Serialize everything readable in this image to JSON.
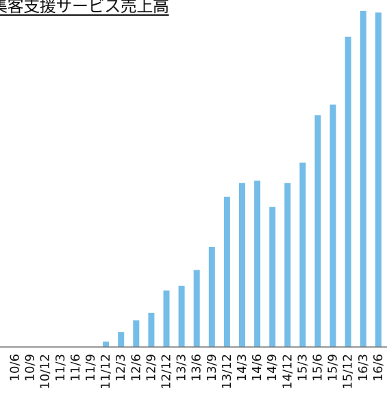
{
  "chart_data": {
    "type": "bar",
    "title": "集客支援サービス売上高",
    "categories": [
      "10/6",
      "10/9",
      "10/12",
      "11/3",
      "11/6",
      "11/9",
      "11/12",
      "12/3",
      "12/6",
      "12/9",
      "12/12",
      "13/3",
      "13/6",
      "13/9",
      "13/12",
      "14/3",
      "14/6",
      "14/9",
      "14/12",
      "15/3",
      "15/6",
      "15/9",
      "15/12",
      "16/3",
      "16/6"
    ],
    "values": [
      0,
      0,
      0,
      0,
      0,
      0,
      1.6,
      4.5,
      8.0,
      10.3,
      17.0,
      18.4,
      23.2,
      30.1,
      45.2,
      49.4,
      50.1,
      42.2,
      49.4,
      55.5,
      69.8,
      73.0,
      93.4,
      101.2,
      100.7
    ],
    "ylim": [
      0,
      102
    ],
    "xlabel": "",
    "ylabel": "",
    "bar_color": "#74bde8",
    "axis_color": "#777777",
    "grid": false,
    "legend": "none"
  }
}
